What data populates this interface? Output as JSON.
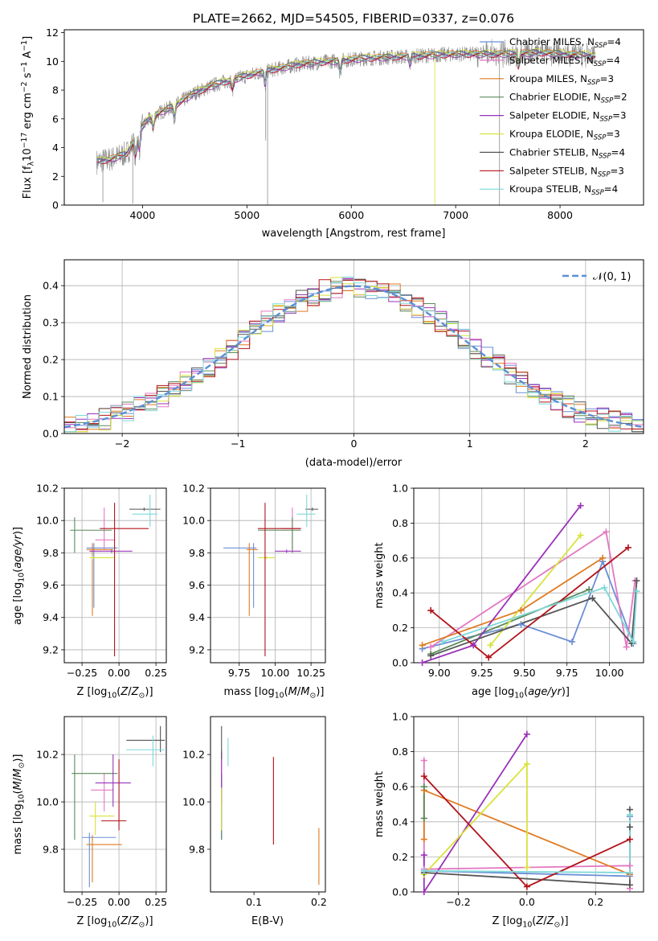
{
  "figure": {
    "title": "PLATE=2662, MJD=54505, FIBERID=0337, z=0.076"
  },
  "colors": {
    "Chabrier MILES": "#6a8fd6",
    "Salpeter MILES": "#e377c2",
    "Kroupa MILES": "#e07b22",
    "Chabrier ELODIE": "#5b8a5b",
    "Salpeter ELODIE": "#9a32b8",
    "Kroupa ELODIE": "#d8e23a",
    "Chabrier STELIB": "#555555",
    "Salpeter STELIB": "#b3131b",
    "Kroupa STELIB": "#7fd8d8",
    "data": "#8c8c8c",
    "grid": "#b0b0b0",
    "normal": "#5b8fd6"
  },
  "chart_data": [
    {
      "type": "line",
      "title": "PLATE=2662, MJD=54505, FIBERID=0337, z=0.076",
      "xlabel": "wavelength [Angstrom, rest frame]",
      "ylabel": "Flux [f_λ 10^-17 erg cm^-2 s^-1 A^-1]",
      "xlim": [
        3250,
        8800
      ],
      "ylim": [
        0,
        12.2
      ],
      "xticks": [
        4000,
        5000,
        6000,
        7000,
        8000
      ],
      "yticks": [
        0,
        2,
        4,
        6,
        8,
        10,
        12
      ],
      "grid": false,
      "legend_position": "right",
      "legend": [
        {
          "base": "Chabrier MILES, N",
          "sub": "SSP",
          "tail": "=4"
        },
        {
          "base": "Salpeter MILES, N",
          "sub": "SSP",
          "tail": "=4"
        },
        {
          "base": "Kroupa MILES, N",
          "sub": "SSP",
          "tail": "=3"
        },
        {
          "base": "Chabrier ELODIE, N",
          "sub": "SSP",
          "tail": "=2"
        },
        {
          "base": "Salpeter ELODIE, N",
          "sub": "SSP",
          "tail": "=3"
        },
        {
          "base": "Kroupa ELODIE, N",
          "sub": "SSP",
          "tail": "=3"
        },
        {
          "base": "Chabrier STELIB, N",
          "sub": "SSP",
          "tail": "=4"
        },
        {
          "base": "Salpeter STELIB, N",
          "sub": "SSP",
          "tail": "=3"
        },
        {
          "base": "Kroupa STELIB, N",
          "sub": "SSP",
          "tail": "=4"
        }
      ],
      "continuum": {
        "x": [
          3550,
          3700,
          3850,
          4000,
          4100,
          4300,
          4500,
          4700,
          4900,
          5100,
          5300,
          5500,
          5800,
          6100,
          6400,
          6700,
          7000,
          7400,
          7800,
          8300
        ],
        "y": [
          3.0,
          3.2,
          3.6,
          5.5,
          6.2,
          6.9,
          7.8,
          8.4,
          8.8,
          9.2,
          9.5,
          9.8,
          10.0,
          10.2,
          10.3,
          10.4,
          10.5,
          10.5,
          10.6,
          10.4
        ]
      }
    },
    {
      "type": "line",
      "xlabel": "(data-model)/error",
      "ylabel": "Normed distribution",
      "xlim": [
        -2.5,
        2.5
      ],
      "ylim": [
        0,
        0.47
      ],
      "xticks": [
        -2,
        -1,
        0,
        1,
        2
      ],
      "yticks": [
        0.0,
        0.1,
        0.2,
        0.3,
        0.4
      ],
      "grid": true,
      "legend_position": "top-right",
      "legend": [
        "𝒩(0, 1)"
      ],
      "normal": {
        "mu": 0,
        "sigma": 1
      },
      "bin_width": 0.1,
      "histograms": "9 step histograms, one per model, approximately following N(0,1)"
    },
    {
      "type": "scatter",
      "xlabel": "Z [log10(Z/Z⊙)]",
      "ylabel": "age [log10(age/yr)]",
      "xlim": [
        -0.37,
        0.32
      ],
      "ylim": [
        9.12,
        10.2
      ],
      "xticks": [
        -0.25,
        0.0,
        0.25
      ],
      "yticks": [
        9.2,
        9.4,
        9.6,
        9.8,
        10.0,
        10.2
      ],
      "grid": true,
      "errorbars": [
        {
          "model": "Chabrier MILES",
          "x": -0.17,
          "xe": [
            -0.22,
            -0.01
          ],
          "y": 9.83,
          "ye": [
            9.46,
            9.86
          ]
        },
        {
          "model": "Salpeter MILES",
          "x": -0.1,
          "xe": [
            -0.16,
            -0.03
          ],
          "y": 9.88,
          "ye": [
            9.82,
            10.08
          ]
        },
        {
          "model": "Kroupa MILES",
          "x": -0.18,
          "xe": [
            -0.22,
            -0.04
          ],
          "y": 9.82,
          "ye": [
            9.41,
            9.86
          ]
        },
        {
          "model": "Chabrier ELODIE",
          "x": -0.3,
          "xe": [
            -0.33,
            -0.05
          ],
          "y": 9.94,
          "ye": [
            9.8,
            10.02
          ]
        },
        {
          "model": "Salpeter ELODIE",
          "x": -0.05,
          "xe": [
            -0.2,
            0.09
          ],
          "y": 9.81,
          "ye": [
            9.8,
            9.82
          ]
        },
        {
          "model": "Kroupa ELODIE",
          "x": -0.18,
          "xe": [
            -0.2,
            -0.03
          ],
          "y": 9.77,
          "ye": [
            9.76,
            9.78
          ]
        },
        {
          "model": "Chabrier STELIB",
          "x": 0.17,
          "xe": [
            0.07,
            0.28
          ],
          "y": 10.07,
          "ye": [
            10.06,
            10.08
          ]
        },
        {
          "model": "Salpeter STELIB",
          "x": -0.03,
          "xe": [
            -0.13,
            0.2
          ],
          "y": 9.95,
          "ye": [
            9.16,
            10.11
          ]
        },
        {
          "model": "Kroupa STELIB",
          "x": 0.21,
          "xe": [
            0.09,
            0.26
          ],
          "y": 10.04,
          "ye": [
            9.96,
            10.16
          ]
        }
      ]
    },
    {
      "type": "scatter",
      "xlabel": "mass [log10(M/M⊙)]",
      "ylabel": "",
      "xlim": [
        9.55,
        10.35
      ],
      "ylim": [
        9.12,
        10.2
      ],
      "xticks": [
        9.75,
        10.0,
        10.25
      ],
      "yticks": [
        9.2,
        9.4,
        9.6,
        9.8,
        10.0,
        10.2
      ],
      "grid": true,
      "errorbars": [
        {
          "model": "Chabrier MILES",
          "x": 9.85,
          "xe": [
            9.64,
            9.87
          ],
          "y": 9.83,
          "ye": [
            9.46,
            9.86
          ]
        },
        {
          "model": "Salpeter MILES",
          "x": 10.12,
          "xe": [
            10.04,
            10.18
          ],
          "y": 9.95,
          "ye": [
            9.82,
            10.08
          ]
        },
        {
          "model": "Kroupa MILES",
          "x": 9.82,
          "xe": [
            9.8,
            9.88
          ],
          "y": 9.82,
          "ye": [
            9.41,
            9.86
          ]
        },
        {
          "model": "Chabrier ELODIE",
          "x": 10.12,
          "xe": [
            9.88,
            10.18
          ],
          "y": 9.94,
          "ye": [
            9.8,
            10.02
          ]
        },
        {
          "model": "Salpeter ELODIE",
          "x": 10.08,
          "xe": [
            10.0,
            10.18
          ],
          "y": 9.81,
          "ye": [
            9.8,
            9.82
          ]
        },
        {
          "model": "Kroupa ELODIE",
          "x": 9.94,
          "xe": [
            9.88,
            10.0
          ],
          "y": 9.77,
          "ye": [
            9.76,
            9.78
          ]
        },
        {
          "model": "Chabrier STELIB",
          "x": 10.26,
          "xe": [
            10.21,
            10.3
          ],
          "y": 10.07,
          "ye": [
            10.06,
            10.08
          ]
        },
        {
          "model": "Salpeter STELIB",
          "x": 9.93,
          "xe": [
            9.88,
            10.18
          ],
          "y": 9.95,
          "ye": [
            9.16,
            10.11
          ]
        },
        {
          "model": "Kroupa STELIB",
          "x": 10.22,
          "xe": [
            10.15,
            10.28
          ],
          "y": 10.04,
          "ye": [
            9.96,
            10.16
          ]
        }
      ]
    },
    {
      "type": "line",
      "xlabel": "age [log10(age/yr)]",
      "ylabel": "mass weight",
      "xlim": [
        8.85,
        10.2
      ],
      "ylim": [
        0,
        1.0
      ],
      "xticks": [
        9.0,
        9.25,
        9.5,
        9.75,
        10.0
      ],
      "yticks": [
        0.0,
        0.2,
        0.4,
        0.6,
        0.8,
        1.0
      ],
      "grid": true,
      "series": [
        {
          "model": "Chabrier MILES",
          "x": [
            8.9,
            9.48,
            9.78,
            9.96,
            10.14
          ],
          "y": [
            0.08,
            0.22,
            0.12,
            0.58,
            0.11
          ]
        },
        {
          "model": "Salpeter MILES",
          "x": [
            8.95,
            9.98,
            10.1,
            10.15
          ],
          "y": [
            0.09,
            0.75,
            0.09,
            0.47
          ]
        },
        {
          "model": "Kroupa MILES",
          "x": [
            8.9,
            9.48,
            9.96
          ],
          "y": [
            0.1,
            0.3,
            0.6
          ]
        },
        {
          "model": "Chabrier ELODIE",
          "x": [
            8.95,
            9.88
          ],
          "y": [
            0.05,
            0.42
          ]
        },
        {
          "model": "Salpeter ELODIE",
          "x": [
            8.9,
            9.2,
            9.83
          ],
          "y": [
            0.0,
            0.1,
            0.9
          ]
        },
        {
          "model": "Kroupa ELODIE",
          "x": [
            9.3,
            9.83
          ],
          "y": [
            0.1,
            0.73
          ]
        },
        {
          "model": "Chabrier STELIB",
          "x": [
            8.95,
            9.9,
            10.13,
            10.16
          ],
          "y": [
            0.04,
            0.37,
            0.11,
            0.47
          ]
        },
        {
          "model": "Salpeter STELIB",
          "x": [
            8.95,
            9.29,
            10.11
          ],
          "y": [
            0.3,
            0.03,
            0.66
          ]
        },
        {
          "model": "Kroupa STELIB",
          "x": [
            9.02,
            9.97,
            10.14,
            10.16
          ],
          "y": [
            0.12,
            0.43,
            0.12,
            0.41
          ]
        }
      ]
    },
    {
      "type": "scatter",
      "xlabel": "Z [log10(Z/Z⊙)]",
      "ylabel": "mass [log10(M/M⊙)]",
      "xlim": [
        -0.37,
        0.32
      ],
      "ylim": [
        9.62,
        10.36
      ],
      "xticks": [
        -0.25,
        0.0,
        0.25
      ],
      "yticks": [
        9.8,
        10.0,
        10.2
      ],
      "grid": true,
      "errorbars": [
        {
          "model": "Chabrier MILES",
          "x": -0.2,
          "xe": [
            -0.25,
            -0.02
          ],
          "y": 9.85,
          "ye": [
            9.64,
            9.87
          ]
        },
        {
          "model": "Salpeter MILES",
          "x": -0.1,
          "xe": [
            -0.19,
            -0.04
          ],
          "y": 10.05,
          "ye": [
            9.96,
            10.12
          ]
        },
        {
          "model": "Kroupa MILES",
          "x": -0.18,
          "xe": [
            -0.22,
            0.02
          ],
          "y": 9.82,
          "ye": [
            9.66,
            9.86
          ]
        },
        {
          "model": "Chabrier ELODIE",
          "x": -0.3,
          "xe": [
            -0.32,
            -0.01
          ],
          "y": 10.12,
          "ye": [
            9.84,
            10.2
          ]
        },
        {
          "model": "Salpeter ELODIE",
          "x": -0.04,
          "xe": [
            -0.16,
            0.08
          ],
          "y": 10.08,
          "ye": [
            9.98,
            10.2
          ]
        },
        {
          "model": "Kroupa ELODIE",
          "x": -0.16,
          "xe": [
            -0.2,
            -0.03
          ],
          "y": 9.94,
          "ye": [
            9.86,
            10.0
          ]
        },
        {
          "model": "Chabrier STELIB",
          "x": 0.28,
          "xe": [
            0.05,
            0.31
          ],
          "y": 10.26,
          "ye": [
            10.21,
            10.32
          ]
        },
        {
          "model": "Salpeter STELIB",
          "x": 0.0,
          "xe": [
            -0.12,
            0.05
          ],
          "y": 9.92,
          "ye": [
            9.88,
            10.18
          ]
        },
        {
          "model": "Kroupa STELIB",
          "x": 0.23,
          "xe": [
            0.05,
            0.31
          ],
          "y": 10.22,
          "ye": [
            10.15,
            10.28
          ]
        }
      ]
    },
    {
      "type": "scatter",
      "xlabel": "E(B-V)",
      "ylabel": "",
      "xlim": [
        0.033,
        0.21
      ],
      "ylim": [
        9.62,
        10.36
      ],
      "xticks": [
        0.1,
        0.2
      ],
      "yticks": [
        9.8,
        10.0,
        10.2
      ],
      "grid": false,
      "errorbars": [
        {
          "model": "Chabrier MILES",
          "x": 0.05,
          "xe": [
            0.05,
            0.05
          ],
          "y": 9.9,
          "ye": [
            9.84,
            10.02
          ]
        },
        {
          "model": "Salpeter MILES",
          "x": 0.05,
          "xe": [
            0.05,
            0.05
          ],
          "y": 10.1,
          "ye": [
            9.98,
            10.22
          ]
        },
        {
          "model": "Kroupa MILES",
          "x": 0.2,
          "xe": [
            0.2,
            0.2
          ],
          "y": 9.82,
          "ye": [
            9.65,
            9.89
          ]
        },
        {
          "model": "Chabrier ELODIE",
          "x": 0.05,
          "xe": [
            0.05,
            0.05
          ],
          "y": 9.95,
          "ye": [
            9.84,
            10.12
          ]
        },
        {
          "model": "Salpeter ELODIE",
          "x": 0.05,
          "xe": [
            0.05,
            0.05
          ],
          "y": 10.12,
          "ye": [
            10.0,
            10.21
          ]
        },
        {
          "model": "Kroupa ELODIE",
          "x": 0.05,
          "xe": [
            0.05,
            0.05
          ],
          "y": 9.95,
          "ye": [
            9.88,
            10.06
          ]
        },
        {
          "model": "Chabrier STELIB",
          "x": 0.05,
          "xe": [
            0.05,
            0.05
          ],
          "y": 10.25,
          "ye": [
            10.18,
            10.32
          ]
        },
        {
          "model": "Salpeter STELIB",
          "x": 0.13,
          "xe": [
            0.13,
            0.13
          ],
          "y": 9.95,
          "ye": [
            9.82,
            10.19
          ]
        },
        {
          "model": "Kroupa STELIB",
          "x": 0.06,
          "xe": [
            0.06,
            0.06
          ],
          "y": 10.2,
          "ye": [
            10.15,
            10.27
          ]
        }
      ]
    },
    {
      "type": "line",
      "xlabel": "Z [log10(Z/Z⊙)]",
      "ylabel": "mass weight",
      "xlim": [
        -0.33,
        0.34
      ],
      "ylim": [
        0,
        1.0
      ],
      "xticks": [
        -0.2,
        0.0,
        0.2
      ],
      "yticks": [
        0.0,
        0.2,
        0.4,
        0.6,
        0.8,
        1.0
      ],
      "grid": true,
      "series": [
        {
          "model": "Chabrier MILES",
          "x": [
            -0.3,
            0.3,
            0.3
          ],
          "y": [
            0.12,
            0.09,
            0.43
          ]
        },
        {
          "model": "Salpeter MILES",
          "x": [
            -0.3,
            -0.3,
            0.3,
            0.3
          ],
          "y": [
            0.75,
            0.13,
            0.15,
            0.02
          ]
        },
        {
          "model": "Kroupa MILES",
          "x": [
            -0.3,
            -0.3,
            0.3
          ],
          "y": [
            0.3,
            0.58,
            0.1
          ]
        },
        {
          "model": "Chabrier ELODIE",
          "x": [
            -0.3,
            -0.3
          ],
          "y": [
            0.42,
            0.6
          ]
        },
        {
          "model": "Salpeter ELODIE",
          "x": [
            -0.3,
            -0.3,
            0.0
          ],
          "y": [
            0.21,
            0.0,
            0.9
          ]
        },
        {
          "model": "Kroupa ELODIE",
          "x": [
            -0.3,
            0.0,
            0.0
          ],
          "y": [
            0.1,
            0.73,
            0.14
          ]
        },
        {
          "model": "Chabrier STELIB",
          "x": [
            -0.3,
            0.3,
            0.3,
            0.3
          ],
          "y": [
            0.11,
            0.04,
            0.37,
            0.47
          ]
        },
        {
          "model": "Salpeter STELIB",
          "x": [
            -0.3,
            0.0,
            0.3
          ],
          "y": [
            0.66,
            0.03,
            0.3
          ]
        },
        {
          "model": "Kroupa STELIB",
          "x": [
            -0.3,
            0.3,
            0.3
          ],
          "y": [
            0.12,
            0.11,
            0.44
          ]
        }
      ]
    }
  ]
}
